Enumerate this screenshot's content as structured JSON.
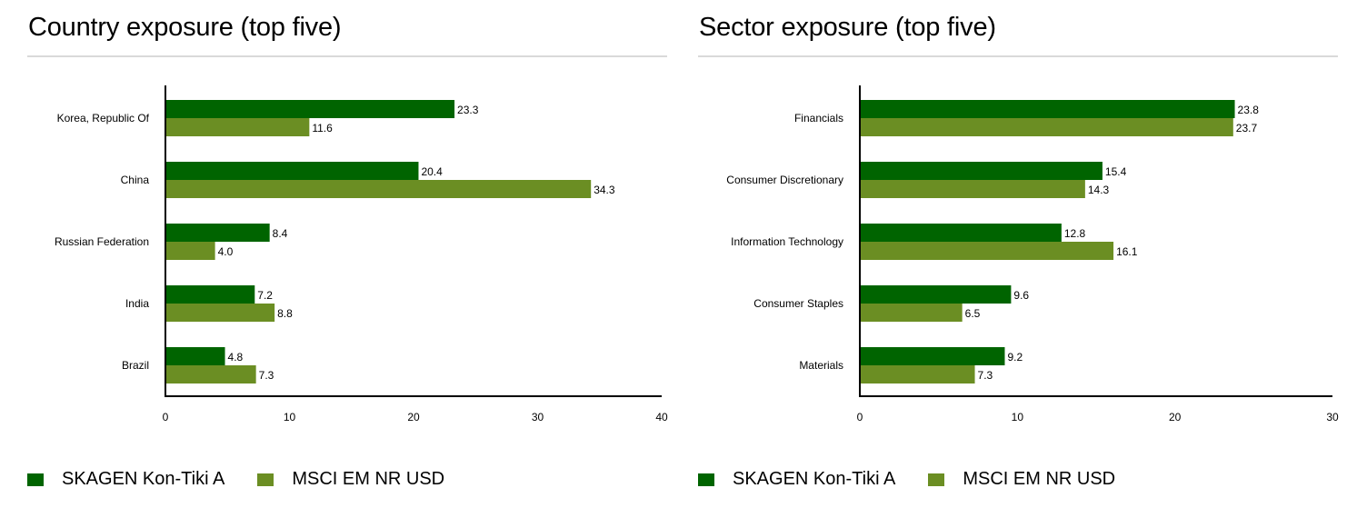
{
  "colors": {
    "fund": "#006400",
    "benchmark": "#6b8e23",
    "axis": "#000000",
    "rule": "#d9d9d9"
  },
  "chart_data": [
    {
      "type": "bar",
      "orientation": "horizontal",
      "title": "Country exposure (top five)",
      "categories": [
        "Korea, Republic Of",
        "China",
        "Russian Federation",
        "India",
        "Brazil"
      ],
      "series": [
        {
          "name": "SKAGEN Kon-Tiki A",
          "color": "#006400",
          "values": [
            23.3,
            20.4,
            8.4,
            7.2,
            4.8
          ],
          "labels": [
            "23.3",
            "20.4",
            "8.4",
            "7.2",
            "4.8"
          ]
        },
        {
          "name": "MSCI EM NR USD",
          "color": "#6b8e23",
          "values": [
            11.6,
            34.3,
            4.0,
            8.8,
            7.3
          ],
          "labels": [
            "11.6",
            "34.3",
            "4.0",
            "8.8",
            "7.3"
          ]
        }
      ],
      "xlim": [
        0,
        40
      ],
      "xticks": [
        "0",
        "10",
        "20",
        "30",
        "40"
      ],
      "xlabel": "",
      "ylabel": "",
      "grid": false,
      "legend": "bottom"
    },
    {
      "type": "bar",
      "orientation": "horizontal",
      "title": "Sector exposure (top five)",
      "categories": [
        "Financials",
        "Consumer Discretionary",
        "Information Technology",
        "Consumer Staples",
        "Materials"
      ],
      "series": [
        {
          "name": "SKAGEN Kon-Tiki A",
          "color": "#006400",
          "values": [
            23.8,
            15.4,
            12.8,
            9.6,
            9.2
          ],
          "labels": [
            "23.8",
            "15.4",
            "12.8",
            "9.6",
            "9.2"
          ]
        },
        {
          "name": "MSCI EM NR USD",
          "color": "#6b8e23",
          "values": [
            23.7,
            14.3,
            16.1,
            6.5,
            7.3
          ],
          "labels": [
            "23.7",
            "14.3",
            "16.1",
            "6.5",
            "7.3"
          ]
        }
      ],
      "xlim": [
        0,
        30
      ],
      "xticks": [
        "0",
        "10",
        "20",
        "30"
      ],
      "xlabel": "",
      "ylabel": "",
      "grid": false,
      "legend": "bottom"
    }
  ]
}
